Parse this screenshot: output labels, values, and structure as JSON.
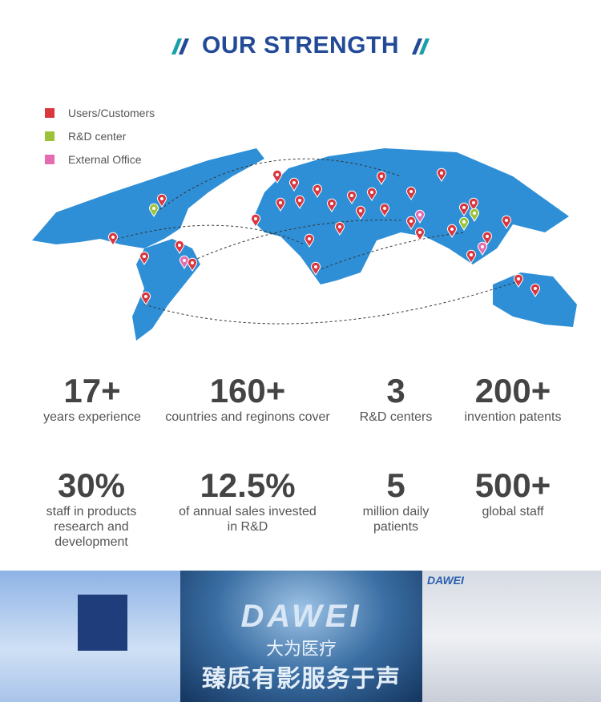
{
  "header": {
    "title": "OUR STRENGTH"
  },
  "legend": [
    {
      "label": "Users/Customers",
      "color": "#d9363e"
    },
    {
      "label": "R&D center",
      "color": "#9cc23a"
    },
    {
      "label": "External Office",
      "color": "#e46cb0"
    }
  ],
  "colors": {
    "map": "#2f8fd6",
    "title": "#234a97",
    "accent": "#1aa0a8"
  },
  "stats": [
    {
      "value": "17+",
      "label": "years experience"
    },
    {
      "value": "160+",
      "label": "countries and reginons cover"
    },
    {
      "value": "3",
      "label": "R&D centers"
    },
    {
      "value": "200+",
      "label": "invention patents"
    },
    {
      "value": "30%",
      "label": "staff in products research and development"
    },
    {
      "value": "12.5%",
      "label": "of annual sales invested in R&D"
    },
    {
      "value": "5",
      "label": "million daily patients"
    },
    {
      "value": "500+",
      "label": "global staff"
    }
  ],
  "photos": {
    "logo": "DAWEI",
    "cn_name": "大为医疗",
    "slogan": "臻质有影服务于声",
    "corner_logo": "DAWEI"
  }
}
